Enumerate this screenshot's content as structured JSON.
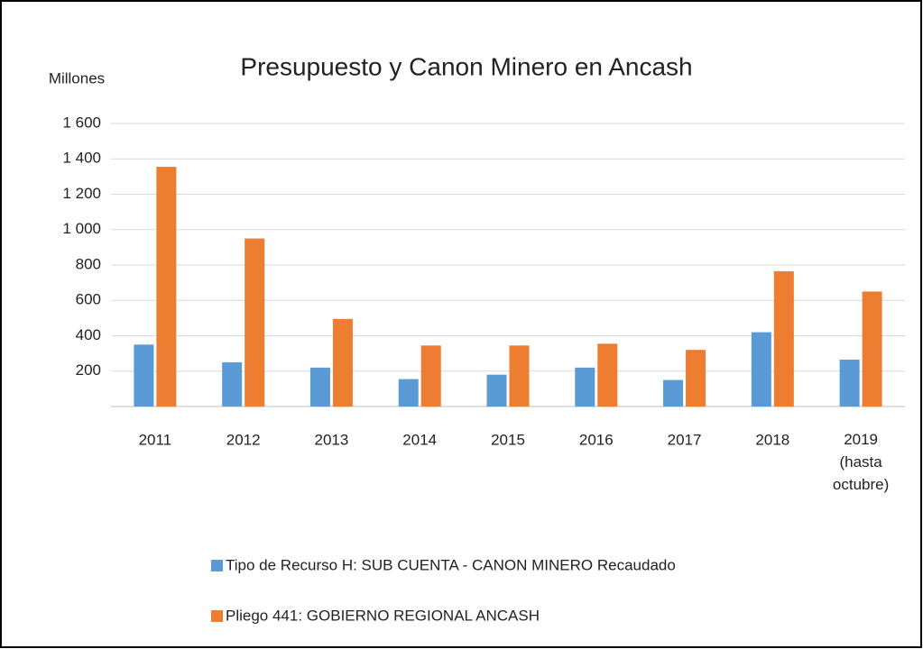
{
  "chart_data": {
    "type": "bar",
    "title": "Presupuesto y Canon Minero en Ancash",
    "y_label": "Millones",
    "categories": [
      "2011",
      "2012",
      "2013",
      "2014",
      "2015",
      "2016",
      "2017",
      "2018",
      "2019 (hasta octubre)"
    ],
    "series": [
      {
        "name": "Tipo de Recurso H: SUB CUENTA - CANON MINERO Recaudado",
        "color": "#5b9bd5",
        "values": [
          350,
          250,
          220,
          155,
          180,
          220,
          150,
          420,
          265
        ]
      },
      {
        "name": "Pliego 441: GOBIERNO REGIONAL ANCASH",
        "color": "#ed7d31",
        "values": [
          1355,
          950,
          495,
          345,
          345,
          355,
          320,
          765,
          650
        ]
      }
    ],
    "ylim": [
      0,
      1600
    ],
    "yticks": [
      200,
      400,
      600,
      800,
      {
        "value": 1000,
        "label": "1 000"
      },
      {
        "value": 1200,
        "label": "1 200"
      },
      {
        "value": 1400,
        "label": "1 400"
      },
      {
        "value": 1600,
        "label": "1 600"
      }
    ],
    "grid": true,
    "legend": "bottom"
  }
}
